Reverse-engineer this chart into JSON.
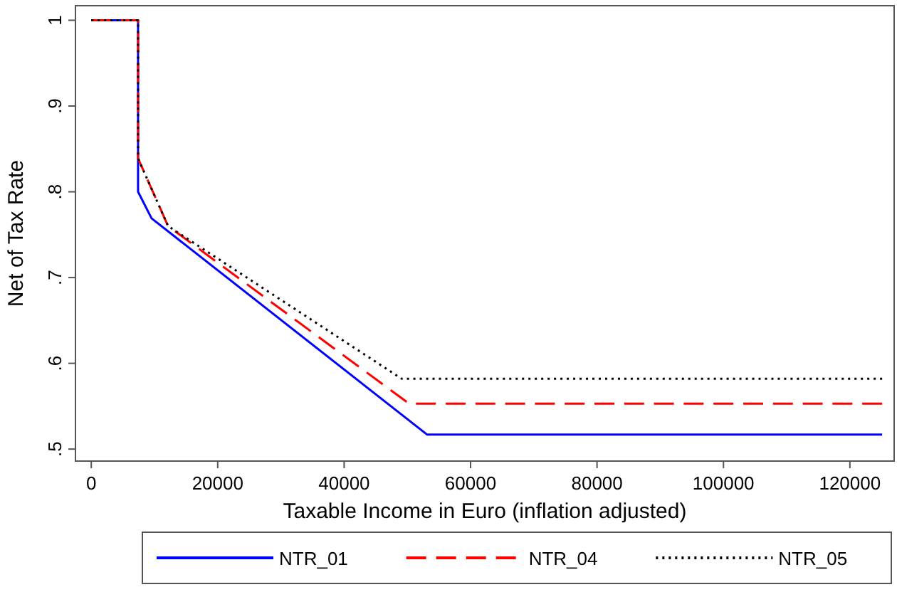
{
  "chart_data": {
    "type": "line",
    "xlabel": "Taxable Income in Euro (inflation adjusted)",
    "ylabel": "Net of Tax Rate",
    "xlim": [
      -2500,
      127000
    ],
    "ylim": [
      0.486,
      1.017
    ],
    "xticks": [
      0,
      20000,
      40000,
      60000,
      80000,
      100000,
      120000
    ],
    "yticks": [
      {
        "value": 0.5,
        "label": ".5"
      },
      {
        "value": 0.6,
        "label": ".6"
      },
      {
        "value": 0.7,
        "label": ".7"
      },
      {
        "value": 0.8,
        "label": ".8"
      },
      {
        "value": 0.9,
        "label": ".9"
      },
      {
        "value": 1,
        "label": "1"
      }
    ],
    "grid": false,
    "legend": "bottom",
    "marker": "none",
    "series": [
      {
        "name": "NTR_01",
        "color": "#0000ff",
        "line_style": "solid",
        "x": [
          0,
          7400,
          7400,
          9540,
          53100,
          125100
        ],
        "values": [
          1,
          1,
          0.8,
          0.769,
          0.517,
          0.517
        ]
      },
      {
        "name": "NTR_04",
        "color": "#ff0000",
        "line_style": "dashed",
        "x": [
          0,
          7400,
          7400,
          12150,
          50260,
          125100
        ],
        "values": [
          1,
          1,
          0.839,
          0.76,
          0.553,
          0.553
        ]
      },
      {
        "name": "NTR_05",
        "color": "#000000",
        "line_style": "dotted",
        "x": [
          0,
          7400,
          7400,
          12150,
          49100,
          125100
        ],
        "values": [
          1,
          1,
          0.839,
          0.76,
          0.582,
          0.582
        ]
      }
    ]
  }
}
